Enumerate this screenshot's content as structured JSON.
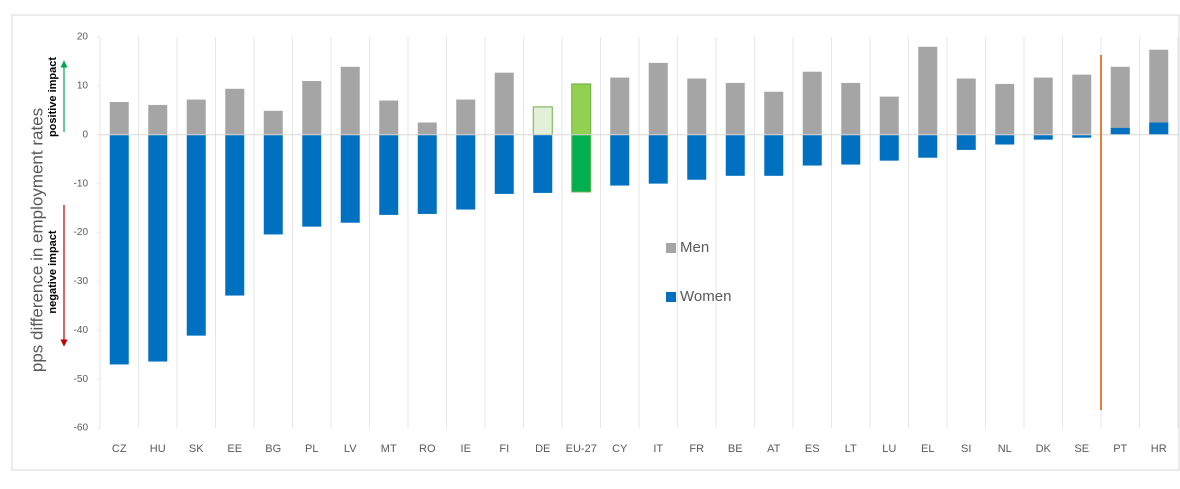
{
  "chart_data": {
    "type": "bar",
    "y_label": "pps difference in employment rates",
    "annotations": [
      "positive impact",
      "negative impact"
    ],
    "categories": [
      "CZ",
      "HU",
      "SK",
      "EE",
      "BG",
      "PL",
      "LV",
      "MT",
      "RO",
      "IE",
      "FI",
      "DE",
      "EU-27",
      "CY",
      "IT",
      "FR",
      "BE",
      "AT",
      "ES",
      "LT",
      "LU",
      "EL",
      "SI",
      "NL",
      "DK",
      "SE",
      "PT",
      "HR"
    ],
    "series": [
      {
        "name": "Men",
        "color": "#a5a5a5",
        "values": [
          6.7,
          6.1,
          7.2,
          9.4,
          4.9,
          11.0,
          13.9,
          7.0,
          2.5,
          7.2,
          12.7,
          5.7,
          10.4,
          11.7,
          14.7,
          11.5,
          10.6,
          8.8,
          12.9,
          10.6,
          7.8,
          18.0,
          11.5,
          10.4,
          11.7,
          12.3,
          13.9,
          17.4
        ],
        "colors": [
          "#a5a5a5",
          "#a5a5a5",
          "#a5a5a5",
          "#a5a5a5",
          "#a5a5a5",
          "#a5a5a5",
          "#a5a5a5",
          "#a5a5a5",
          "#a5a5a5",
          "#a5a5a5",
          "#a5a5a5",
          "#e2f0d9",
          "#92d050",
          "#a5a5a5",
          "#a5a5a5",
          "#a5a5a5",
          "#a5a5a5",
          "#a5a5a5",
          "#a5a5a5",
          "#a5a5a5",
          "#a5a5a5",
          "#a5a5a5",
          "#a5a5a5",
          "#a5a5a5",
          "#a5a5a5",
          "#a5a5a5",
          "#a5a5a5",
          "#a5a5a5"
        ]
      },
      {
        "name": "Women",
        "color": "#0070c0",
        "values": [
          -47.0,
          -46.4,
          -41.1,
          -32.9,
          -20.4,
          -18.8,
          -18.0,
          -16.4,
          -16.2,
          -15.3,
          -12.1,
          -11.9,
          -11.7,
          -10.4,
          -10.0,
          -9.2,
          -8.4,
          -8.4,
          -6.3,
          -6.1,
          -5.3,
          -4.7,
          -3.1,
          -2.0,
          -1.0,
          -0.6,
          1.4,
          2.5
        ],
        "colors": [
          "#0070c0",
          "#0070c0",
          "#0070c0",
          "#0070c0",
          "#0070c0",
          "#0070c0",
          "#0070c0",
          "#0070c0",
          "#0070c0",
          "#0070c0",
          "#0070c0",
          "#0070c0",
          "#00b050",
          "#0070c0",
          "#0070c0",
          "#0070c0",
          "#0070c0",
          "#0070c0",
          "#0070c0",
          "#0070c0",
          "#0070c0",
          "#0070c0",
          "#0070c0",
          "#0070c0",
          "#0070c0",
          "#0070c0",
          "#0070c0",
          "#0070c0"
        ]
      }
    ],
    "ylim": [
      -60,
      20
    ],
    "yticks": [
      -60,
      -50,
      -40,
      -30,
      -20,
      -10,
      0,
      10,
      20
    ]
  }
}
